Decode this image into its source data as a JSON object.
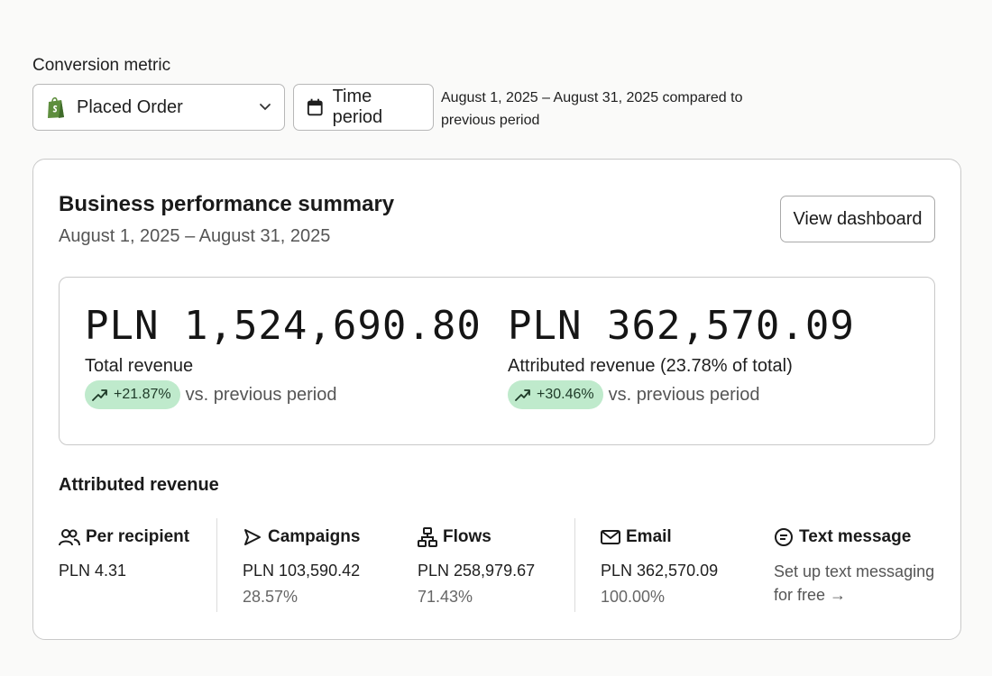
{
  "conversion": {
    "label": "Conversion metric",
    "selected": "Placed Order",
    "time_button": "Time period",
    "period_description": "August 1, 2025 – August 31, 2025 compared to previous period"
  },
  "summary": {
    "title": "Business performance summary",
    "date_range": "August 1, 2025 – August 31, 2025",
    "view_button": "View dashboard",
    "total": {
      "amount": "PLN 1,524,690.80",
      "label": "Total revenue",
      "change": "+21.87%",
      "change_suffix": "vs. previous period"
    },
    "attributed": {
      "amount": "PLN 362,570.09",
      "label": "Attributed revenue (23.78% of total)",
      "change": "+30.46%",
      "change_suffix": "vs. previous period"
    }
  },
  "attributed_revenue": {
    "title": "Attributed revenue",
    "per_recipient": {
      "label": "Per recipient",
      "icon": "people-icon",
      "value": "PLN 4.31"
    },
    "campaigns": {
      "label": "Campaigns",
      "icon": "send-icon",
      "value": "PLN 103,590.42",
      "percent": "28.57%"
    },
    "flows": {
      "label": "Flows",
      "icon": "flow-icon",
      "value": "PLN 258,979.67",
      "percent": "71.43%"
    },
    "email": {
      "label": "Email",
      "icon": "mail-icon",
      "value": "PLN 362,570.09",
      "percent": "100.00%"
    },
    "text_message": {
      "label": "Text message",
      "icon": "chat-icon",
      "link": "Set up text messaging for free →"
    }
  },
  "colors": {
    "positive_pill": "#bfeacc",
    "border": "#c9c9c9",
    "shopify_green": "#5e8e3e"
  }
}
